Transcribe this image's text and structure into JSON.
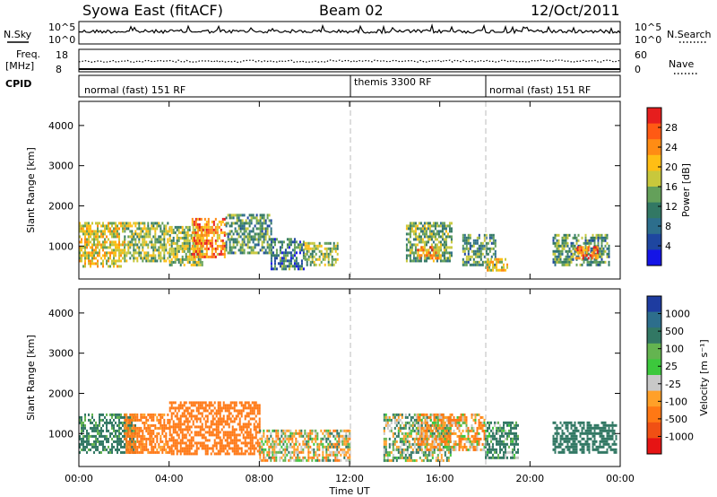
{
  "header": {
    "station": "Syowa East (fitACF)",
    "beam": "Beam 02",
    "date": "12/Oct/2011"
  },
  "panels": {
    "nsky_label": "N.Sky",
    "nsky_ticks": [
      "10^5",
      "10^0"
    ],
    "nsearch_label": "N.Search",
    "nsearch_ticks": [
      "10^5",
      "10^0"
    ],
    "freq_label": "Freq.",
    "freq_unit": "[MHz]",
    "freq_ticks": [
      "18",
      "8"
    ],
    "nave_label": "Nave",
    "nave_ticks": [
      "60",
      "0"
    ],
    "cpid_label": "CPID",
    "cpid_segments": [
      {
        "label": "normal (fast) 151 RF",
        "start_hour": 0,
        "end_hour": 12
      },
      {
        "label": "themis 3300 RF",
        "start_hour": 12,
        "end_hour": 18
      },
      {
        "label": "normal (fast) 151 RF",
        "start_hour": 18,
        "end_hour": 24
      }
    ]
  },
  "colorbars": {
    "power": {
      "label": "Power [dB]",
      "ticks": [
        "28",
        "24",
        "20",
        "16",
        "12",
        "8",
        "4"
      ],
      "colors": [
        "#e61e1e",
        "#ff5a14",
        "#ff8c14",
        "#ffbe14",
        "#c8c83c",
        "#64a05a",
        "#327864",
        "#2d6e8c",
        "#1e46a0",
        "#1414e6"
      ]
    },
    "velocity": {
      "label": "Velocity [m s⁻¹]",
      "ticks": [
        "1000",
        "500",
        "100",
        "25",
        "-25",
        "-100",
        "-500",
        "-1000"
      ],
      "colors": [
        "#1e3ca0",
        "#2d6e8c",
        "#327864",
        "#64b450",
        "#3cc83c",
        "#c8c8c8",
        "#ffa028",
        "#ff7814",
        "#f05014",
        "#e61414"
      ]
    }
  },
  "chart_data": [
    {
      "type": "heatmap",
      "name": "power",
      "ylabel": "Slant Range [km]",
      "xlabel": "",
      "ylim": [
        180,
        4600
      ],
      "xlim": [
        0,
        24
      ],
      "yticks": [
        1000,
        2000,
        3000,
        4000
      ],
      "colorbar": "Power [dB]",
      "grid": false,
      "regions": [
        {
          "x": [
            0.0,
            2.0
          ],
          "y": [
            500,
            1600
          ],
          "value": 20
        },
        {
          "x": [
            2.0,
            4.0
          ],
          "y": [
            600,
            1600
          ],
          "value": 16
        },
        {
          "x": [
            4.0,
            5.5
          ],
          "y": [
            500,
            1500
          ],
          "value": 16
        },
        {
          "x": [
            5.0,
            6.5
          ],
          "y": [
            700,
            1700
          ],
          "value": 26
        },
        {
          "x": [
            6.5,
            8.5
          ],
          "y": [
            800,
            1800
          ],
          "value": 12
        },
        {
          "x": [
            8.5,
            10.0
          ],
          "y": [
            400,
            1200
          ],
          "value": 10
        },
        {
          "x": [
            10.0,
            11.5
          ],
          "y": [
            500,
            1100
          ],
          "value": 16
        },
        {
          "x": [
            14.5,
            16.5
          ],
          "y": [
            600,
            1600
          ],
          "value": 14
        },
        {
          "x": [
            15.0,
            16.0
          ],
          "y": [
            700,
            1000
          ],
          "value": 24
        },
        {
          "x": [
            17.0,
            18.5
          ],
          "y": [
            500,
            1300
          ],
          "value": 12
        },
        {
          "x": [
            18.0,
            19.0
          ],
          "y": [
            400,
            700
          ],
          "value": 20
        },
        {
          "x": [
            21.0,
            23.5
          ],
          "y": [
            500,
            1300
          ],
          "value": 12
        },
        {
          "x": [
            22.0,
            23.0
          ],
          "y": [
            700,
            1000
          ],
          "value": 27
        }
      ]
    },
    {
      "type": "heatmap",
      "name": "velocity",
      "ylabel": "Slant Range [km]",
      "xlabel": "Time UT",
      "ylim": [
        180,
        4600
      ],
      "xlim": [
        0,
        24
      ],
      "yticks": [
        1000,
        2000,
        3000,
        4000
      ],
      "xticks": [
        "00:00",
        "04:00",
        "08:00",
        "12:00",
        "16:00",
        "20:00",
        "00:00"
      ],
      "colorbar": "Velocity [m s⁻¹]",
      "grid": false,
      "regions": [
        {
          "x": [
            0.0,
            2.5
          ],
          "y": [
            500,
            1500
          ],
          "value": 200
        },
        {
          "x": [
            2.0,
            4.0
          ],
          "y": [
            500,
            1500
          ],
          "value": -200
        },
        {
          "x": [
            4.0,
            8.0
          ],
          "y": [
            500,
            1800
          ],
          "value": -300
        },
        {
          "x": [
            8.0,
            12.0
          ],
          "y": [
            300,
            1100
          ],
          "value": 0
        },
        {
          "x": [
            13.5,
            16.5
          ],
          "y": [
            300,
            1500
          ],
          "value": 60
        },
        {
          "x": [
            15.0,
            18.0
          ],
          "y": [
            600,
            1500
          ],
          "value": -80
        },
        {
          "x": [
            18.0,
            19.5
          ],
          "y": [
            400,
            1300
          ],
          "value": 150
        },
        {
          "x": [
            21.0,
            23.8
          ],
          "y": [
            500,
            1300
          ],
          "value": 300
        }
      ]
    }
  ]
}
